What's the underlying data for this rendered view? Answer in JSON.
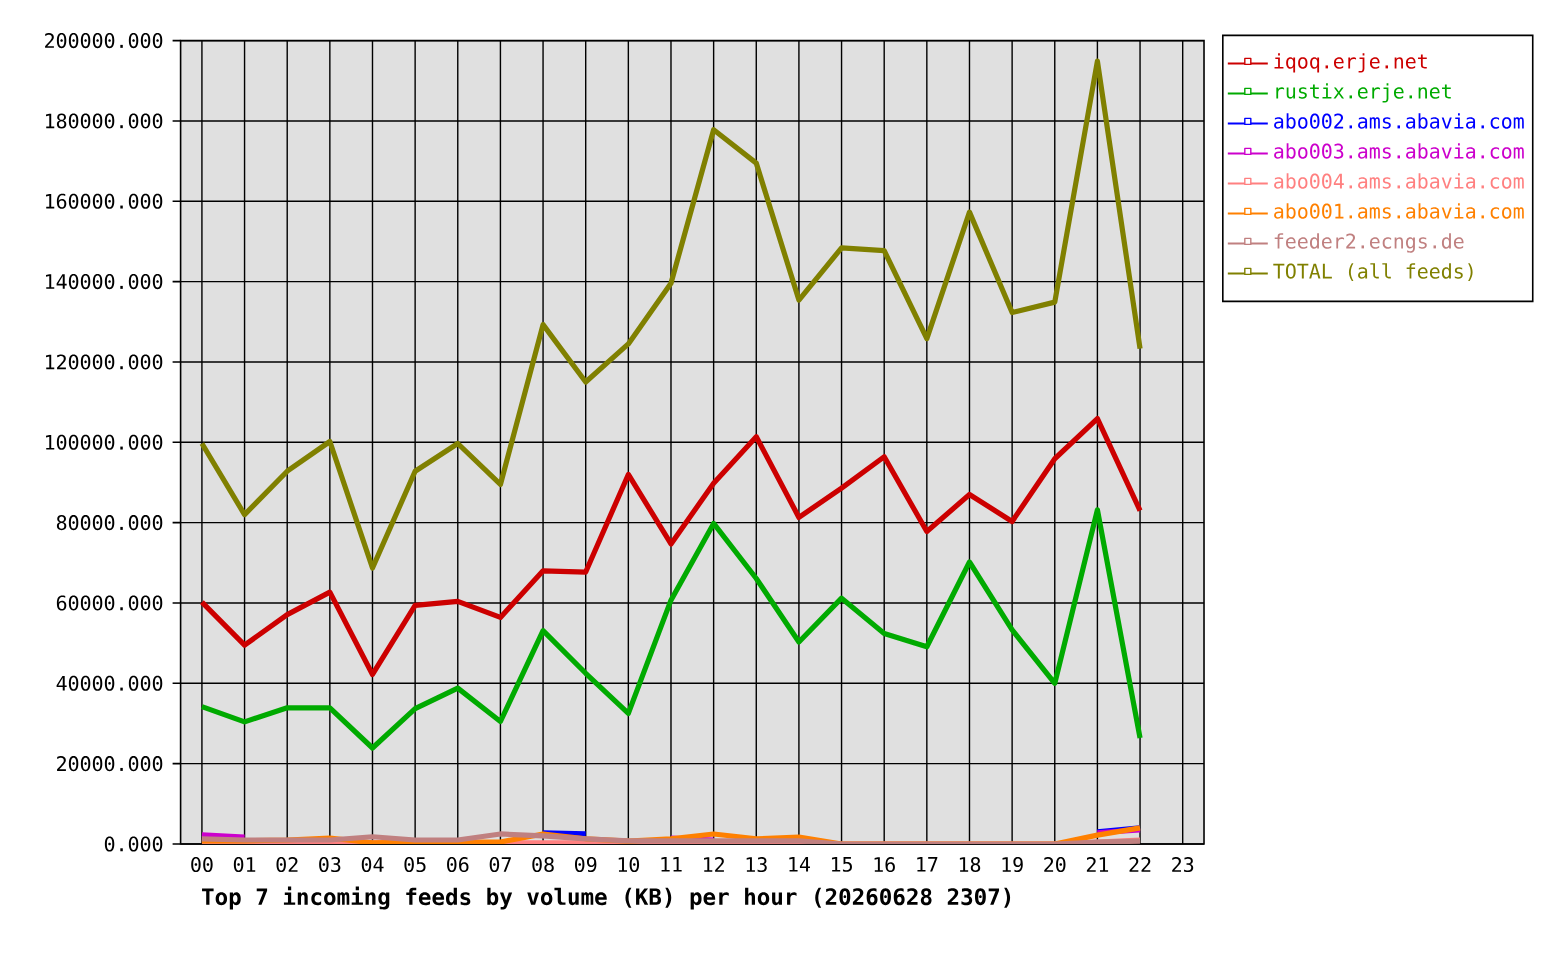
{
  "chart_data": {
    "type": "line",
    "title": "Top 7 incoming feeds by volume (KB) per hour (20260628 2307)",
    "categories": [
      "00",
      "01",
      "02",
      "03",
      "04",
      "05",
      "06",
      "07",
      "08",
      "09",
      "10",
      "11",
      "12",
      "13",
      "14",
      "15",
      "16",
      "17",
      "18",
      "19",
      "20",
      "21",
      "22",
      "23"
    ],
    "series": [
      {
        "name": "iqoq.erje.net",
        "color": "#cc0000",
        "values": [
          60200,
          49500,
          57100,
          62700,
          42200,
          59400,
          60400,
          56400,
          68000,
          67700,
          92000,
          74700,
          89800,
          101400,
          81300,
          88600,
          96400,
          77800,
          87000,
          80300,
          95900,
          105900,
          83000,
          null
        ]
      },
      {
        "name": "rustix.erje.net",
        "color": "#00aa00",
        "values": [
          34200,
          30400,
          33900,
          33900,
          23900,
          33700,
          38800,
          30500,
          53100,
          42500,
          32500,
          60700,
          79800,
          66100,
          50300,
          61200,
          52400,
          49100,
          70200,
          53300,
          40000,
          83200,
          26400,
          null
        ]
      },
      {
        "name": "abo002.ams.abavia.com",
        "color": "#0000ff",
        "values": [
          null,
          null,
          null,
          null,
          null,
          null,
          null,
          null,
          2800,
          2500,
          null,
          null,
          null,
          null,
          null,
          null,
          null,
          null,
          null,
          null,
          null,
          3000,
          4000,
          null
        ]
      },
      {
        "name": "abo003.ams.abavia.com",
        "color": "#cc00cc",
        "values": [
          2300,
          1700,
          null,
          null,
          null,
          null,
          null,
          null,
          null,
          null,
          null,
          1500,
          1000,
          null,
          null,
          null,
          null,
          null,
          null,
          null,
          null,
          2800,
          3500,
          null
        ]
      },
      {
        "name": "abo004.ams.abavia.com",
        "color": "#ff8080",
        "values": [
          300,
          300,
          300,
          300,
          300,
          300,
          300,
          300,
          300,
          300,
          300,
          300,
          300,
          300,
          300,
          0,
          0,
          0,
          0,
          0,
          0,
          500,
          1000,
          null
        ]
      },
      {
        "name": "abo001.ams.abavia.com",
        "color": "#ff8000",
        "values": [
          800,
          800,
          1000,
          1500,
          300,
          500,
          500,
          500,
          2500,
          1300,
          700,
          1300,
          2500,
          1300,
          1700,
          0,
          0,
          0,
          0,
          0,
          0,
          2200,
          4000,
          null
        ]
      },
      {
        "name": "feeder2.ecngs.de",
        "color": "#c08080",
        "values": [
          1300,
          1000,
          1000,
          1000,
          1800,
          1000,
          1000,
          2500,
          2000,
          1300,
          800,
          800,
          800,
          800,
          800,
          0,
          0,
          0,
          0,
          0,
          0,
          500,
          700,
          null
        ]
      },
      {
        "name": "TOTAL (all feeds)",
        "color": "#808000",
        "values": [
          99700,
          82000,
          92800,
          100200,
          68700,
          92800,
          99700,
          89500,
          129300,
          115000,
          124500,
          139600,
          177800,
          169500,
          135400,
          148400,
          147700,
          125800,
          157300,
          132300,
          134900,
          194900,
          123300,
          null
        ]
      }
    ],
    "ylim": [
      0,
      200000
    ],
    "yticks": [
      {
        "value": 0,
        "label": "0.000"
      },
      {
        "value": 20000,
        "label": "20000.000"
      },
      {
        "value": 40000,
        "label": "40000.000"
      },
      {
        "value": 60000,
        "label": "60000.000"
      },
      {
        "value": 80000,
        "label": "80000.000"
      },
      {
        "value": 100000,
        "label": "100000.000"
      },
      {
        "value": 120000,
        "label": "120000.000"
      },
      {
        "value": 140000,
        "label": "140000.000"
      },
      {
        "value": 160000,
        "label": "160000.000"
      },
      {
        "value": 180000,
        "label": "180000.000"
      },
      {
        "value": 200000,
        "label": "200000.000"
      }
    ],
    "grid": true,
    "legend": "right",
    "line_style": "solid"
  }
}
